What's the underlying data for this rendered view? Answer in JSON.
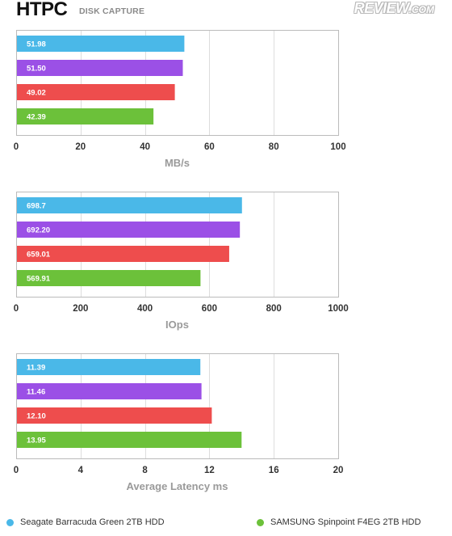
{
  "header": {
    "title": "HTPC",
    "subtitle": "DISK CAPTURE",
    "logo_main": "REVIEW",
    "logo_suffix": ".COM"
  },
  "colors": {
    "blue": "#4ab8e8",
    "purple": "#9b50e6",
    "red": "#ee4d4d",
    "green": "#6cc13a",
    "frame": "#bbbbbb",
    "grid": "#dddddd",
    "tick_text": "#333333",
    "axis_label": "#9a9a9a"
  },
  "chart_data": [
    {
      "type": "bar",
      "orientation": "horizontal",
      "xlabel": "MB/s",
      "xlim": [
        0,
        100
      ],
      "ticks": [
        "0",
        "20",
        "40",
        "60",
        "80",
        "100"
      ],
      "grid": true,
      "series": [
        {
          "value": 51.98,
          "label": "51.98",
          "color": "#4ab8e8"
        },
        {
          "value": 51.5,
          "label": "51.50",
          "color": "#9b50e6"
        },
        {
          "value": 49.02,
          "label": "49.02",
          "color": "#ee4d4d"
        },
        {
          "value": 42.39,
          "label": "42.39",
          "color": "#6cc13a"
        }
      ]
    },
    {
      "type": "bar",
      "orientation": "horizontal",
      "xlabel": "IOps",
      "xlim": [
        0,
        1000
      ],
      "ticks": [
        "0",
        "200",
        "400",
        "600",
        "800",
        "1000"
      ],
      "grid": true,
      "series": [
        {
          "value": 698.7,
          "label": "698.7",
          "color": "#4ab8e8"
        },
        {
          "value": 692.2,
          "label": "692.20",
          "color": "#9b50e6"
        },
        {
          "value": 659.01,
          "label": "659.01",
          "color": "#ee4d4d"
        },
        {
          "value": 569.91,
          "label": "569.91",
          "color": "#6cc13a"
        }
      ]
    },
    {
      "type": "bar",
      "orientation": "horizontal",
      "xlabel": "Average Latency ms",
      "xlim": [
        0,
        20
      ],
      "ticks": [
        "0",
        "4",
        "8",
        "12",
        "16",
        "20"
      ],
      "grid": true,
      "series": [
        {
          "value": 11.39,
          "label": "11.39",
          "color": "#4ab8e8"
        },
        {
          "value": 11.46,
          "label": "11.46",
          "color": "#9b50e6"
        },
        {
          "value": 12.1,
          "label": "12.10",
          "color": "#ee4d4d"
        },
        {
          "value": 13.95,
          "label": "13.95",
          "color": "#6cc13a"
        }
      ]
    }
  ],
  "legend": {
    "placement": "bottom",
    "items": [
      {
        "label": "Seagate Barracuda Green 2TB HDD",
        "color": "#4ab8e8"
      },
      {
        "label": "SAMSUNG Spinpoint F4EG 2TB HDD",
        "color": "#6cc13a"
      }
    ]
  }
}
